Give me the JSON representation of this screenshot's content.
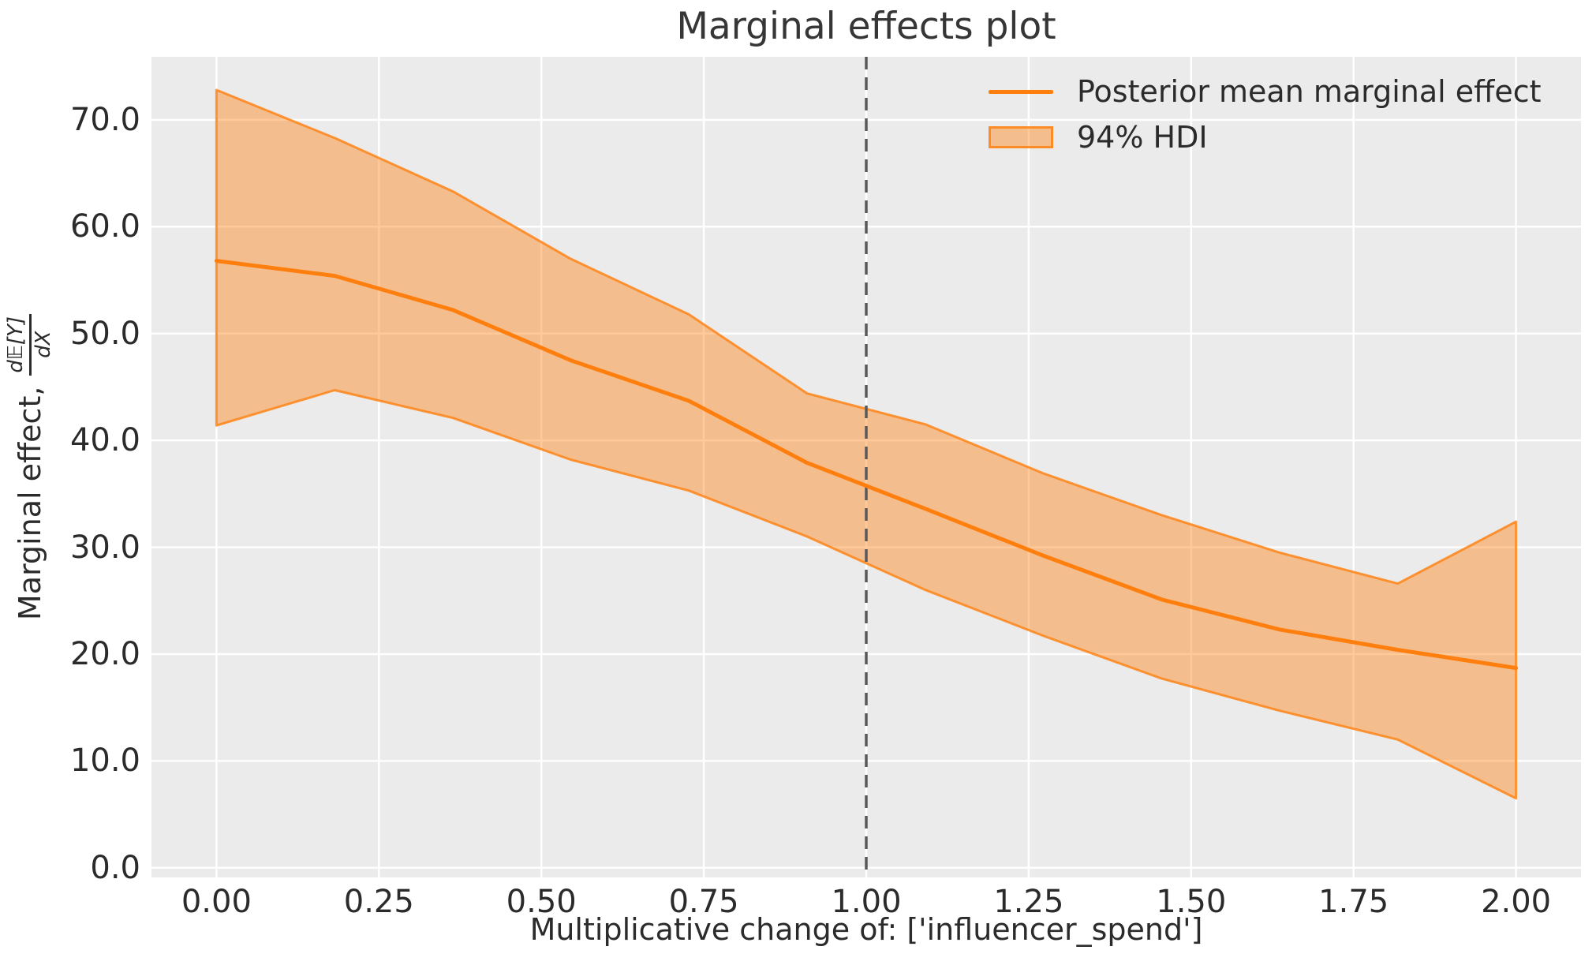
{
  "chart_data": {
    "type": "line",
    "title": "Marginal effects plot",
    "xlabel": "Multiplicative change of: ['influencer_spend']",
    "ylabel": "Marginal effect, d𝔼[Y]/dX",
    "ylabel_prefix": "Marginal effect,",
    "ylabel_frac_num": "d𝔼[Y]",
    "ylabel_frac_den": "dX",
    "x": [
      0.0,
      0.182,
      0.364,
      0.545,
      0.727,
      0.909,
      1.091,
      1.273,
      1.455,
      1.636,
      1.818,
      2.0
    ],
    "series": [
      {
        "name": "Posterior mean marginal effect",
        "role": "mean",
        "values": [
          56.8,
          55.4,
          52.2,
          47.5,
          43.7,
          37.9,
          33.6,
          29.2,
          25.1,
          22.3,
          20.4,
          18.7
        ]
      },
      {
        "name": "94% HDI lower",
        "role": "hdi_lower",
        "values": [
          41.4,
          44.7,
          42.1,
          38.2,
          35.3,
          31.0,
          26.0,
          21.7,
          17.7,
          14.7,
          12.0,
          6.5
        ]
      },
      {
        "name": "94% HDI upper",
        "role": "hdi_upper",
        "values": [
          72.8,
          68.3,
          63.3,
          57.0,
          51.8,
          44.4,
          41.5,
          36.9,
          33.0,
          29.5,
          26.6,
          32.4
        ]
      }
    ],
    "reference_line": {
      "x": 1.0,
      "style": "dashed"
    },
    "xlim": [
      -0.1,
      2.1
    ],
    "ylim": [
      -0.9,
      75.9
    ],
    "grid": true,
    "legend": {
      "position": "upper right",
      "entries": [
        {
          "label": "Posterior mean marginal effect",
          "type": "line"
        },
        {
          "label": "94% HDI",
          "type": "patch"
        }
      ]
    },
    "xticks": {
      "values": [
        0.0,
        0.25,
        0.5,
        0.75,
        1.0,
        1.25,
        1.5,
        1.75,
        2.0
      ],
      "labels": [
        "0.00",
        "0.25",
        "0.50",
        "0.75",
        "1.00",
        "1.25",
        "1.50",
        "1.75",
        "2.00"
      ]
    },
    "yticks": {
      "values": [
        0,
        10,
        20,
        30,
        40,
        50,
        60,
        70
      ],
      "labels": [
        "0.0",
        "10.0",
        "20.0",
        "30.0",
        "40.0",
        "50.0",
        "60.0",
        "70.0"
      ]
    },
    "colors": {
      "mean_line": "#ff7f0e",
      "hdi_fill": "rgba(255,127,14,0.42)",
      "hdi_edge": "rgba(255,127,14,0.8)",
      "reference_line": "#595959",
      "plot_bg": "#ebebeb",
      "grid": "#ffffff",
      "text": "#2b2b2b"
    }
  }
}
